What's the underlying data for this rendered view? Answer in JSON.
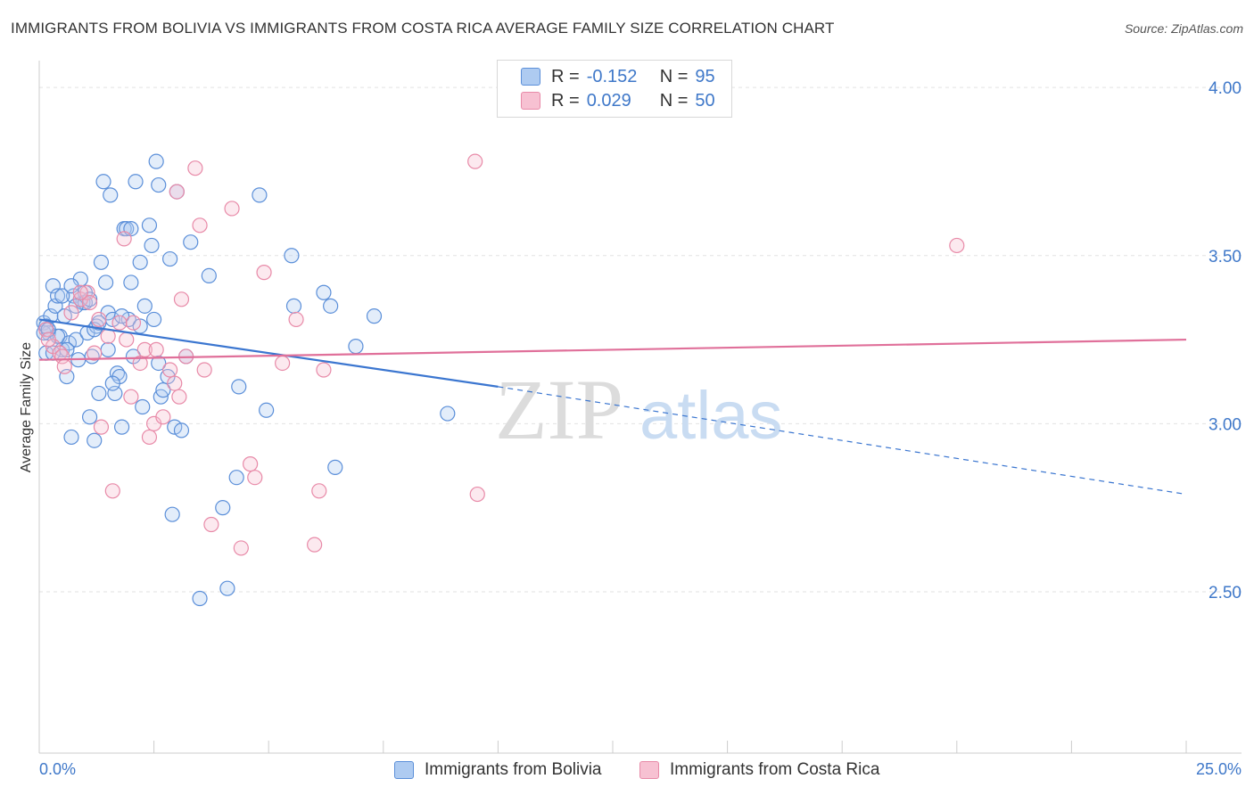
{
  "title": "IMMIGRANTS FROM BOLIVIA VS IMMIGRANTS FROM COSTA RICA AVERAGE FAMILY SIZE CORRELATION CHART",
  "source": "Source: ZipAtlas.com",
  "colors": {
    "blue": "#5b8fd9",
    "blue_fill": "#aecbf1",
    "blue_line": "#3b76d0",
    "pink": "#e88aa8",
    "pink_fill": "#f7c1d2",
    "pink_line": "#e0709a",
    "accent_text": "#3f78c9"
  },
  "legend_top": [
    {
      "r_label": "R =",
      "r_value": "-0.152",
      "n_label": "N =",
      "n_value": "95"
    },
    {
      "r_label": "R =",
      "r_value": "0.029",
      "n_label": "N =",
      "n_value": "50"
    }
  ],
  "chart_data": {
    "type": "scatter",
    "title": "IMMIGRANTS FROM BOLIVIA VS IMMIGRANTS FROM COSTA RICA AVERAGE FAMILY SIZE CORRELATION CHART",
    "xlabel": "",
    "ylabel": "Average Family Size",
    "xlim": [
      0,
      25
    ],
    "ylim": [
      2.02,
      4.08
    ],
    "x_tick_labels": [
      {
        "value": 0,
        "label": "0.0%"
      },
      {
        "value": 25,
        "label": "25.0%"
      }
    ],
    "y_ticks": [
      {
        "value": 2.5,
        "label": "2.50"
      },
      {
        "value": 3.0,
        "label": "3.00"
      },
      {
        "value": 3.5,
        "label": "3.50"
      },
      {
        "value": 4.0,
        "label": "4.00"
      }
    ],
    "grid": true,
    "watermark": {
      "part1": "ZIP",
      "part2": "atlas"
    },
    "series": [
      {
        "name": "Immigrants from Bolivia",
        "color_key": "blue",
        "trend": {
          "x0": 0,
          "y0": 3.31,
          "x1": 10,
          "y1": 3.11,
          "dash_to_x": 25,
          "dash_to_y": 2.79
        },
        "points": [
          [
            0.1,
            3.3
          ],
          [
            0.15,
            3.21
          ],
          [
            0.2,
            3.27
          ],
          [
            0.25,
            3.32
          ],
          [
            0.3,
            3.41
          ],
          [
            0.35,
            3.35
          ],
          [
            0.4,
            3.38
          ],
          [
            0.45,
            3.26
          ],
          [
            0.5,
            3.22
          ],
          [
            0.55,
            3.32
          ],
          [
            0.6,
            3.14
          ],
          [
            0.65,
            3.24
          ],
          [
            0.7,
            2.96
          ],
          [
            0.75,
            3.38
          ],
          [
            0.8,
            3.25
          ],
          [
            0.85,
            3.19
          ],
          [
            0.9,
            3.43
          ],
          [
            0.95,
            3.36
          ],
          [
            1.0,
            3.39
          ],
          [
            1.05,
            3.27
          ],
          [
            1.1,
            3.02
          ],
          [
            1.15,
            3.2
          ],
          [
            1.2,
            2.95
          ],
          [
            1.25,
            3.29
          ],
          [
            1.3,
            3.09
          ],
          [
            1.35,
            3.48
          ],
          [
            1.4,
            3.72
          ],
          [
            1.45,
            3.42
          ],
          [
            1.5,
            3.33
          ],
          [
            1.55,
            3.68
          ],
          [
            1.6,
            3.31
          ],
          [
            1.65,
            3.09
          ],
          [
            1.7,
            3.15
          ],
          [
            1.75,
            3.14
          ],
          [
            1.8,
            2.99
          ],
          [
            1.85,
            3.58
          ],
          [
            1.9,
            3.58
          ],
          [
            1.95,
            3.31
          ],
          [
            2.0,
            3.42
          ],
          [
            2.05,
            3.2
          ],
          [
            2.1,
            3.72
          ],
          [
            2.2,
            3.48
          ],
          [
            2.25,
            3.05
          ],
          [
            2.3,
            3.35
          ],
          [
            2.4,
            3.59
          ],
          [
            2.45,
            3.53
          ],
          [
            2.55,
            3.78
          ],
          [
            2.6,
            3.71
          ],
          [
            2.65,
            3.08
          ],
          [
            2.7,
            3.1
          ],
          [
            2.8,
            3.14
          ],
          [
            2.85,
            3.49
          ],
          [
            2.9,
            2.73
          ],
          [
            2.95,
            2.99
          ],
          [
            3.0,
            3.69
          ],
          [
            3.1,
            2.98
          ],
          [
            3.3,
            3.54
          ],
          [
            3.5,
            2.48
          ],
          [
            3.7,
            3.44
          ],
          [
            4.0,
            2.75
          ],
          [
            4.1,
            2.51
          ],
          [
            4.3,
            2.84
          ],
          [
            4.35,
            3.11
          ],
          [
            4.8,
            3.68
          ],
          [
            4.95,
            3.04
          ],
          [
            5.5,
            3.5
          ],
          [
            5.55,
            3.35
          ],
          [
            6.2,
            3.39
          ],
          [
            6.35,
            3.35
          ],
          [
            6.45,
            2.87
          ],
          [
            6.9,
            3.23
          ],
          [
            7.3,
            3.32
          ],
          [
            8.9,
            3.03
          ],
          [
            2.0,
            3.58
          ],
          [
            0.5,
            3.38
          ],
          [
            0.9,
            3.37
          ],
          [
            1.0,
            3.36
          ],
          [
            0.3,
            3.21
          ],
          [
            0.1,
            3.27
          ],
          [
            0.15,
            3.29
          ],
          [
            1.2,
            3.28
          ],
          [
            0.6,
            3.22
          ],
          [
            2.2,
            3.29
          ],
          [
            1.5,
            3.22
          ],
          [
            1.8,
            3.32
          ],
          [
            2.6,
            3.18
          ],
          [
            0.4,
            3.26
          ],
          [
            0.7,
            3.41
          ],
          [
            1.1,
            3.37
          ],
          [
            2.5,
            3.31
          ],
          [
            3.2,
            3.2
          ],
          [
            1.3,
            3.3
          ],
          [
            0.2,
            3.28
          ],
          [
            0.8,
            3.35
          ],
          [
            1.6,
            3.12
          ]
        ]
      },
      {
        "name": "Immigrants from Costa Rica",
        "color_key": "pink",
        "trend": {
          "x0": 0,
          "y0": 3.19,
          "x1": 25,
          "y1": 3.25
        },
        "points": [
          [
            0.15,
            3.28
          ],
          [
            0.3,
            3.23
          ],
          [
            0.45,
            3.21
          ],
          [
            0.5,
            3.2
          ],
          [
            0.55,
            3.17
          ],
          [
            0.7,
            3.33
          ],
          [
            0.9,
            3.37
          ],
          [
            1.05,
            3.39
          ],
          [
            1.1,
            3.36
          ],
          [
            1.2,
            3.21
          ],
          [
            1.3,
            3.31
          ],
          [
            1.35,
            2.99
          ],
          [
            1.5,
            3.26
          ],
          [
            1.6,
            2.8
          ],
          [
            1.75,
            3.3
          ],
          [
            1.85,
            3.55
          ],
          [
            2.0,
            3.08
          ],
          [
            2.05,
            3.3
          ],
          [
            2.2,
            3.18
          ],
          [
            2.3,
            3.22
          ],
          [
            2.4,
            2.96
          ],
          [
            2.5,
            3.0
          ],
          [
            2.55,
            3.22
          ],
          [
            2.7,
            3.02
          ],
          [
            2.85,
            3.16
          ],
          [
            2.95,
            3.12
          ],
          [
            3.0,
            3.69
          ],
          [
            3.05,
            3.08
          ],
          [
            3.1,
            3.37
          ],
          [
            3.2,
            3.2
          ],
          [
            3.4,
            3.76
          ],
          [
            3.5,
            3.59
          ],
          [
            3.6,
            3.16
          ],
          [
            3.75,
            2.7
          ],
          [
            4.2,
            3.64
          ],
          [
            4.4,
            2.63
          ],
          [
            4.6,
            2.88
          ],
          [
            4.7,
            2.84
          ],
          [
            4.9,
            3.45
          ],
          [
            5.3,
            3.18
          ],
          [
            5.6,
            3.31
          ],
          [
            6.0,
            2.64
          ],
          [
            6.1,
            2.8
          ],
          [
            6.2,
            3.16
          ],
          [
            9.5,
            3.78
          ],
          [
            9.55,
            2.79
          ],
          [
            20.0,
            3.53
          ],
          [
            0.9,
            3.39
          ],
          [
            1.9,
            3.25
          ],
          [
            0.2,
            3.25
          ]
        ]
      }
    ]
  }
}
